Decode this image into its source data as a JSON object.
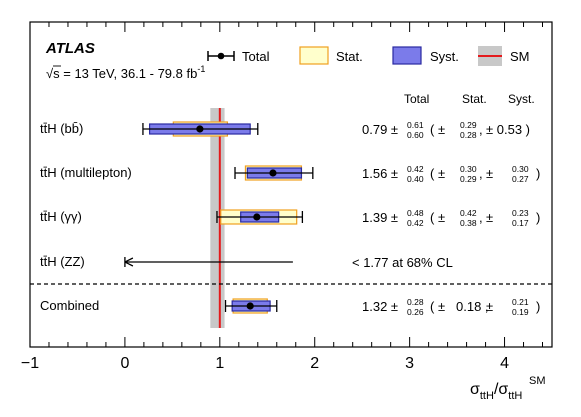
{
  "chart_data": {
    "type": "forest",
    "experiment": "ATLAS",
    "energy_label": "√s = 13 TeV, 36.1 - 79.8 fb",
    "energy_sup": "-1",
    "xlabel_main": "σ",
    "xlabel_sub": "ttH",
    "xlabel_sep": "/σ",
    "xlabel_sub2": "ttH",
    "xlabel_sup2": "SM",
    "xlim": [
      -1,
      4.5
    ],
    "xticks": [
      -1,
      0,
      1,
      2,
      3,
      4
    ],
    "sm_value": 1,
    "sm_band": [
      0.9,
      1.05
    ],
    "legend": {
      "total": "Total",
      "stat": "Stat.",
      "syst": "Syst.",
      "sm": "SM"
    },
    "headers": {
      "total": "Total",
      "stat": "Stat.",
      "syst": "Syst."
    },
    "colors": {
      "stat_fill": "#ffffcc",
      "stat_edge": "#f0a020",
      "syst_fill": "#7b7bea",
      "syst_edge": "#2a2aa0",
      "sm_line": "#e41a1c",
      "sm_band": "#c8c8c8"
    },
    "channels": [
      {
        "label": "tt̄H (bb̄)",
        "central": 0.79,
        "tot_up": "0.61",
        "tot_dn": "0.60",
        "tot_lo": 0.19,
        "tot_hi": 1.4,
        "stat_up": "0.29",
        "stat_dn": "0.28",
        "stat_lo": 0.51,
        "stat_hi": 1.08,
        "syst": "0.53",
        "syst_lo": 0.26,
        "syst_hi": 1.32,
        "syst_sym": true
      },
      {
        "label": "tt̄H (multilepton)",
        "central": 1.56,
        "tot_up": "0.42",
        "tot_dn": "0.40",
        "tot_lo": 1.16,
        "tot_hi": 1.98,
        "stat_up": "0.30",
        "stat_dn": "0.29",
        "stat_lo": 1.27,
        "stat_hi": 1.86,
        "syst_up": "0.30",
        "syst_dn": "0.27",
        "syst_lo": 1.29,
        "syst_hi": 1.86,
        "syst_sym": false
      },
      {
        "label": "tt̄H (γγ)",
        "central": 1.39,
        "tot_up": "0.48",
        "tot_dn": "0.42",
        "tot_lo": 0.97,
        "tot_hi": 1.87,
        "stat_up": "0.42",
        "stat_dn": "0.38",
        "stat_lo": 1.01,
        "stat_hi": 1.81,
        "syst_up": "0.23",
        "syst_dn": "0.17",
        "syst_lo": 1.22,
        "syst_hi": 1.62,
        "syst_sym": false
      },
      {
        "label": "tt̄H (ZZ)",
        "limit": 1.77,
        "limit_text": "< 1.77 at 68% CL"
      },
      {
        "label": "Combined",
        "central": 1.32,
        "tot_up": "0.28",
        "tot_dn": "0.26",
        "tot_lo": 1.06,
        "tot_hi": 1.6,
        "stat_sym_text": "0.18",
        "stat_lo": 1.14,
        "stat_hi": 1.5,
        "syst_up": "0.21",
        "syst_dn": "0.19",
        "syst_lo": 1.13,
        "syst_hi": 1.53,
        "syst_sym": false,
        "stat_sym": true
      }
    ]
  }
}
